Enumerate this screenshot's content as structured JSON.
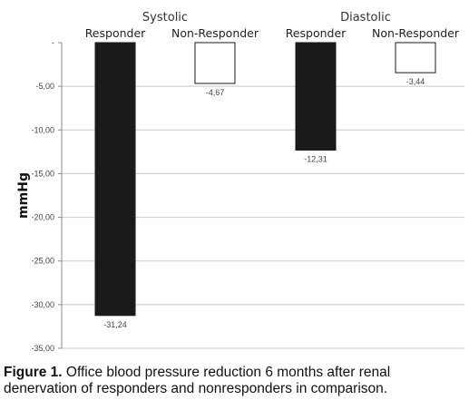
{
  "chart_data": {
    "type": "bar",
    "groups": [
      "Systolic",
      "Diastolic"
    ],
    "categories": [
      "Responder",
      "Non-Responder",
      "Responder",
      "Non-Responder"
    ],
    "series": [
      {
        "group": "Systolic",
        "category": "Responder",
        "value": -31.24,
        "label": "-31,24",
        "fill": "#1a1a1a"
      },
      {
        "group": "Systolic",
        "category": "Non-Responder",
        "value": -4.67,
        "label": "-4,67",
        "fill": "#ffffff"
      },
      {
        "group": "Diastolic",
        "category": "Responder",
        "value": -12.31,
        "label": "-12,31",
        "fill": "#1a1a1a"
      },
      {
        "group": "Diastolic",
        "category": "Non-Responder",
        "value": -3.44,
        "label": "-3,44",
        "fill": "#ffffff"
      }
    ],
    "ylabel": "mmHg",
    "ylim": [
      -35,
      0
    ],
    "yticks": [
      {
        "value": 0,
        "label": "-"
      },
      {
        "value": -5,
        "label": "-5,00"
      },
      {
        "value": -10,
        "label": "-10,00"
      },
      {
        "value": -15,
        "label": "-15,00"
      },
      {
        "value": -20,
        "label": "-20,00"
      },
      {
        "value": -25,
        "label": "-25,00"
      },
      {
        "value": -30,
        "label": "-30,00"
      },
      {
        "value": -35,
        "label": "-35,00"
      }
    ],
    "grid": true,
    "legend": "none"
  },
  "caption": {
    "prefix": "Figure 1.",
    "text": " Office blood pressure reduction 6 months after renal denervation of responders and nonresponders in comparison."
  }
}
